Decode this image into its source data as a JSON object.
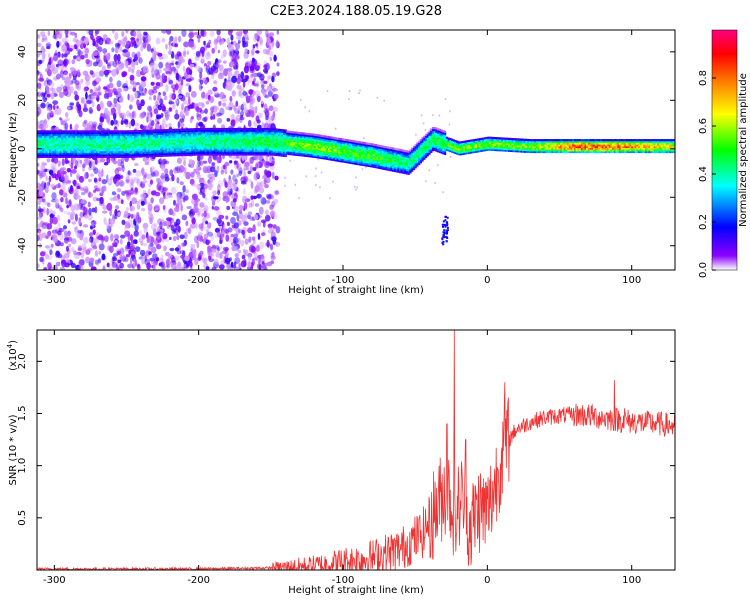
{
  "chart_data": [
    {
      "type": "heatmap",
      "title": "C2E3.2024.188.05.19.G28",
      "xlabel": "Height of straight line (km)",
      "ylabel": "Frequency (Hz)",
      "xlim": [
        -312,
        130
      ],
      "ylim": [
        -50,
        49
      ],
      "xticks": [
        -300,
        -200,
        -100,
        0,
        100
      ],
      "yticks": [
        -40,
        -20,
        0,
        20,
        40
      ],
      "colorbar": {
        "label": "Normalized spectral amplitude",
        "range": [
          0,
          1
        ],
        "ticks": [
          0.0,
          0.2,
          0.4,
          0.6,
          0.8
        ],
        "colors": [
          "#ffffff",
          "#8b00ff",
          "#0000ff",
          "#00ffff",
          "#00ff00",
          "#ffff00",
          "#ff8000",
          "#ff0000",
          "#ff0080"
        ]
      },
      "description_points": [
        {
          "x": -300,
          "center_freq": 2,
          "peak_amp": 0.45
        },
        {
          "x": -250,
          "center_freq": 2,
          "peak_amp": 0.45
        },
        {
          "x": -200,
          "center_freq": 3,
          "peak_amp": 0.45
        },
        {
          "x": -150,
          "center_freq": 3,
          "peak_amp": 0.5
        },
        {
          "x": -120,
          "center_freq": 1,
          "peak_amp": 0.6
        },
        {
          "x": -80,
          "center_freq": -3,
          "peak_amp": 0.55
        },
        {
          "x": -55,
          "center_freq": -6,
          "peak_amp": 0.45
        },
        {
          "x": -38,
          "center_freq": 4,
          "peak_amp": 0.5
        },
        {
          "x": -20,
          "center_freq": 0,
          "peak_amp": 0.6
        },
        {
          "x": 0,
          "center_freq": 2,
          "peak_amp": 0.6
        },
        {
          "x": 30,
          "center_freq": 1,
          "peak_amp": 0.6
        },
        {
          "x": 60,
          "center_freq": 1,
          "peak_amp": 0.9
        },
        {
          "x": 90,
          "center_freq": 1,
          "peak_amp": 0.85
        },
        {
          "x": 125,
          "center_freq": 1,
          "peak_amp": 0.7
        }
      ]
    },
    {
      "type": "line",
      "xlabel": "Height of straight line (km)",
      "ylabel": "SNR (10 * v/v)",
      "multiplier_label": "(x10",
      "multiplier_exp": "4",
      "xlim": [
        -312,
        130
      ],
      "ylim": [
        0,
        2.3
      ],
      "xticks": [
        -300,
        -200,
        -100,
        0,
        100
      ],
      "yticks": [
        0.5,
        1.0,
        1.5,
        2.0
      ],
      "line_color": "#ee3333",
      "x": [
        -312,
        -300,
        -250,
        -200,
        -150,
        -120,
        -100,
        -80,
        -60,
        -45,
        -35,
        -28,
        -22,
        -18,
        -12,
        -6,
        0,
        5,
        10,
        15,
        20,
        30,
        40,
        50,
        60,
        70,
        80,
        90,
        100,
        110,
        120,
        130
      ],
      "y": [
        0.01,
        0.01,
        0.01,
        0.01,
        0.02,
        0.04,
        0.08,
        0.12,
        0.2,
        0.35,
        0.6,
        0.8,
        0.5,
        0.7,
        0.4,
        0.6,
        0.55,
        0.8,
        1.1,
        1.25,
        1.35,
        1.42,
        1.46,
        1.48,
        1.49,
        1.48,
        1.46,
        1.44,
        1.42,
        1.41,
        1.4,
        1.38
      ],
      "peaks": [
        {
          "x": -23,
          "y": 2.3
        },
        {
          "x": -28,
          "y": 1.4
        },
        {
          "x": -15,
          "y": 1.25
        },
        {
          "x": 12,
          "y": 1.8
        },
        {
          "x": 88,
          "y": 1.82
        },
        {
          "x": 95,
          "y": 1.55
        }
      ]
    }
  ]
}
